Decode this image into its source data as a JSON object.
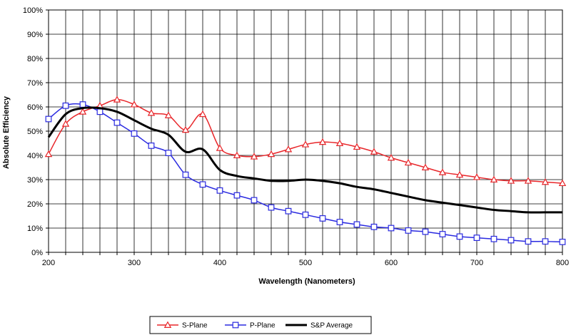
{
  "chart_data": {
    "type": "line",
    "title": "",
    "xlabel": "Wavelength (Nanometers)",
    "ylabel": "Absolute Efficiency",
    "xlim": [
      200,
      800
    ],
    "ylim": [
      0,
      100
    ],
    "x_ticks": [
      200,
      300,
      400,
      500,
      600,
      700,
      800
    ],
    "x_minor_step": 20,
    "y_ticks": [
      0,
      10,
      20,
      30,
      40,
      50,
      60,
      70,
      80,
      90,
      100
    ],
    "y_tick_labels": [
      "0%",
      "10%",
      "20%",
      "30%",
      "40%",
      "50%",
      "60%",
      "70%",
      "80%",
      "90%",
      "100%"
    ],
    "grid": true,
    "legend_position": "bottom-center",
    "series": [
      {
        "name": "S-Plane",
        "color": "#e8262a",
        "marker": "triangle",
        "x": [
          200,
          220,
          240,
          260,
          280,
          300,
          320,
          340,
          360,
          380,
          400,
          420,
          440,
          460,
          480,
          500,
          520,
          540,
          560,
          580,
          600,
          620,
          640,
          660,
          680,
          700,
          720,
          740,
          760,
          780,
          800
        ],
        "y": [
          40.5,
          53,
          58,
          60.5,
          63,
          61,
          57.5,
          56.5,
          50.5,
          57,
          43,
          40,
          39.5,
          40.5,
          42.5,
          44.5,
          45.5,
          45,
          43.5,
          41.5,
          39,
          37,
          35,
          33,
          32,
          31,
          30,
          29.5,
          29.5,
          29,
          28.5
        ]
      },
      {
        "name": "P-Plane",
        "color": "#2a2ae0",
        "marker": "square",
        "x": [
          200,
          220,
          240,
          260,
          280,
          300,
          320,
          340,
          360,
          380,
          400,
          420,
          440,
          460,
          480,
          500,
          520,
          540,
          560,
          580,
          600,
          620,
          640,
          660,
          680,
          700,
          720,
          740,
          760,
          780,
          800
        ],
        "y": [
          55,
          60.5,
          61,
          58,
          53.5,
          49,
          44,
          41,
          32,
          28,
          25.5,
          23.5,
          21.5,
          18.5,
          17,
          15.5,
          14,
          12.5,
          11.5,
          10.5,
          10,
          9,
          8.5,
          7.5,
          6.5,
          6,
          5.5,
          5,
          4.5,
          4.5,
          4.3
        ]
      },
      {
        "name": "S&P Average",
        "color": "#000000",
        "marker": "none",
        "x": [
          200,
          220,
          240,
          260,
          280,
          300,
          320,
          340,
          360,
          380,
          400,
          420,
          440,
          460,
          480,
          500,
          520,
          540,
          560,
          580,
          600,
          620,
          640,
          660,
          680,
          700,
          720,
          740,
          760,
          780,
          800
        ],
        "y": [
          47.5,
          57,
          59.5,
          59.5,
          58,
          54.5,
          51,
          48.5,
          41.5,
          42.5,
          34,
          31.5,
          30.5,
          29.5,
          29.5,
          30,
          29.5,
          28.5,
          27,
          26,
          24.5,
          23,
          21.5,
          20.5,
          19.5,
          18.5,
          17.5,
          17,
          16.5,
          16.5,
          16.5
        ]
      }
    ]
  }
}
